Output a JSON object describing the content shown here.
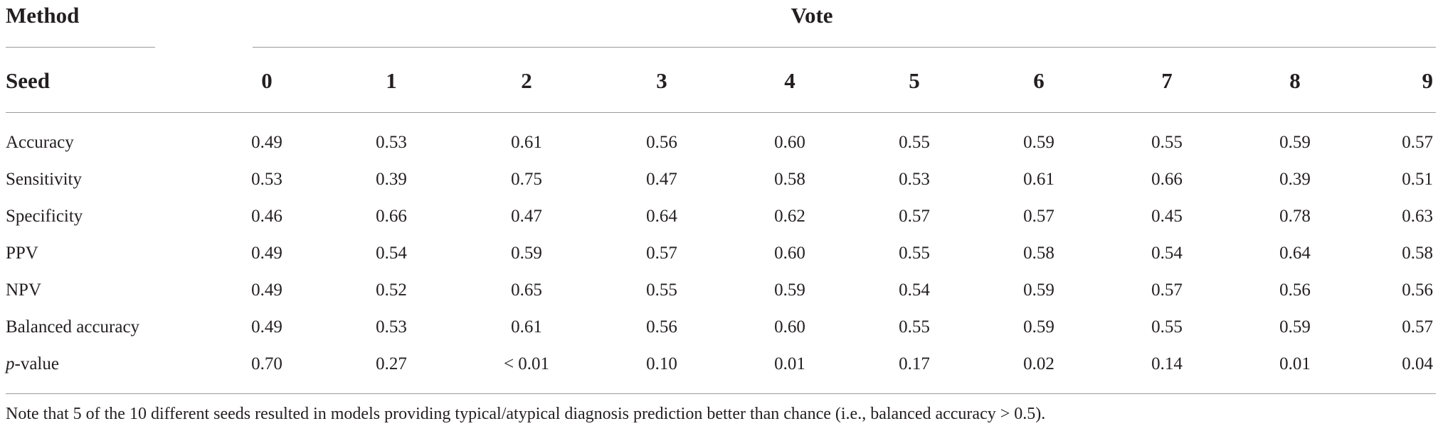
{
  "table": {
    "header": {
      "method": "Method",
      "vote": "Vote",
      "seed": "Seed"
    },
    "seeds": [
      "0",
      "1",
      "2",
      "3",
      "4",
      "5",
      "6",
      "7",
      "8",
      "9"
    ],
    "rows": [
      {
        "label": "Accuracy",
        "values": [
          "0.49",
          "0.53",
          "0.61",
          "0.56",
          "0.60",
          "0.55",
          "0.59",
          "0.55",
          "0.59",
          "0.57"
        ]
      },
      {
        "label": "Sensitivity",
        "values": [
          "0.53",
          "0.39",
          "0.75",
          "0.47",
          "0.58",
          "0.53",
          "0.61",
          "0.66",
          "0.39",
          "0.51"
        ]
      },
      {
        "label": "Specificity",
        "values": [
          "0.46",
          "0.66",
          "0.47",
          "0.64",
          "0.62",
          "0.57",
          "0.57",
          "0.45",
          "0.78",
          "0.63"
        ]
      },
      {
        "label": "PPV",
        "values": [
          "0.49",
          "0.54",
          "0.59",
          "0.57",
          "0.60",
          "0.55",
          "0.58",
          "0.54",
          "0.64",
          "0.58"
        ]
      },
      {
        "label": "NPV",
        "values": [
          "0.49",
          "0.52",
          "0.65",
          "0.55",
          "0.59",
          "0.54",
          "0.59",
          "0.57",
          "0.56",
          "0.56"
        ]
      },
      {
        "label": "Balanced accuracy",
        "values": [
          "0.49",
          "0.53",
          "0.61",
          "0.56",
          "0.60",
          "0.55",
          "0.59",
          "0.55",
          "0.59",
          "0.57"
        ]
      },
      {
        "label_italic": "p",
        "label_rest": "-value",
        "values": [
          "0.70",
          "0.27",
          "< 0.01",
          "0.10",
          "0.01",
          "0.17",
          "0.02",
          "0.14",
          "0.01",
          "0.04"
        ]
      }
    ],
    "note": "Note that 5 of the 10 different seeds resulted in models providing typical/atypical diagnosis prediction better than chance (i.e., balanced accuracy > 0.5)."
  }
}
